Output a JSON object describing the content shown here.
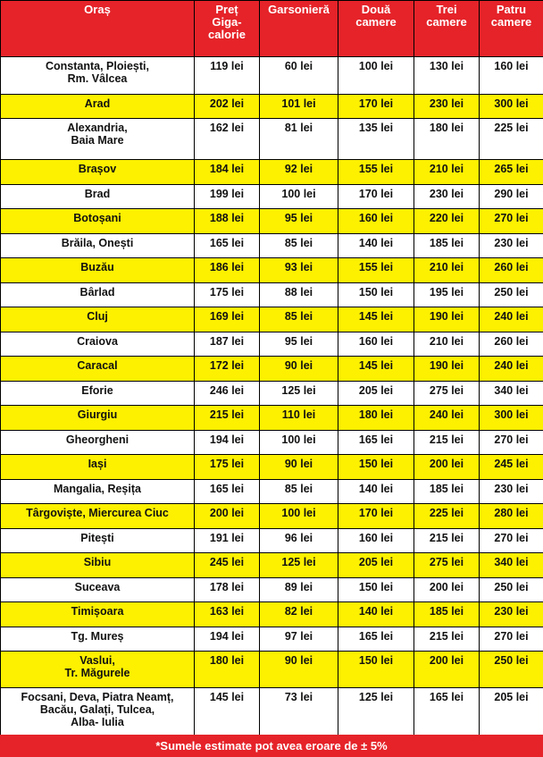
{
  "table": {
    "header": [
      "Oraș",
      "Preț\nGiga-\ncalorie",
      "Garsonieră",
      "Două\ncamere",
      "Trei\ncamere",
      "Patru\ncamere"
    ],
    "rows": [
      [
        "Constanta, Ploiești,\nRm. Vâlcea",
        "119 lei",
        "60 lei",
        "100 lei",
        "130 lei",
        "160 lei"
      ],
      [
        "Arad",
        "202 lei",
        "101 lei",
        "170 lei",
        "230 lei",
        "300 lei"
      ],
      [
        "Alexandria,\nBaia Mare",
        "162 lei",
        "81 lei",
        "135 lei",
        "180 lei",
        "225 lei"
      ],
      [
        "Brașov",
        "184 lei",
        "92 lei",
        "155 lei",
        "210 lei",
        "265 lei"
      ],
      [
        "Brad",
        "199 lei",
        "100 lei",
        "170 lei",
        "230 lei",
        "290 lei"
      ],
      [
        "Botoșani",
        "188 lei",
        "95 lei",
        "160 lei",
        "220 lei",
        "270 lei"
      ],
      [
        "Brăila, Onești",
        "165 lei",
        "85 lei",
        "140 lei",
        "185 lei",
        "230 lei"
      ],
      [
        "Buzău",
        "186 lei",
        "93 lei",
        "155 lei",
        "210 lei",
        "260 lei"
      ],
      [
        "Bârlad",
        "175 lei",
        "88 lei",
        "150 lei",
        "195 lei",
        "250 lei"
      ],
      [
        "Cluj",
        "169 lei",
        "85 lei",
        "145 lei",
        "190 lei",
        "240 lei"
      ],
      [
        "Craiova",
        "187 lei",
        "95 lei",
        "160 lei",
        "210 lei",
        "260 lei"
      ],
      [
        "Caracal",
        "172 lei",
        "90 lei",
        "145 lei",
        "190 lei",
        "240 lei"
      ],
      [
        "Eforie",
        "246 lei",
        "125 lei",
        "205 lei",
        "275 lei",
        "340 lei"
      ],
      [
        "Giurgiu",
        "215 lei",
        "110 lei",
        "180 lei",
        "240 lei",
        "300 lei"
      ],
      [
        "Gheorgheni",
        "194 lei",
        "100 lei",
        "165 lei",
        "215 lei",
        "270 lei"
      ],
      [
        "Iași",
        "175 lei",
        "90 lei",
        "150 lei",
        "200 lei",
        "245 lei"
      ],
      [
        "Mangalia, Reșița",
        "165 lei",
        "85 lei",
        "140 lei",
        "185 lei",
        "230 lei"
      ],
      [
        "Târgoviște, Miercurea Ciuc",
        "200 lei",
        "100 lei",
        "170 lei",
        "225 lei",
        "280 lei"
      ],
      [
        "Pitești",
        "191 lei",
        "96 lei",
        "160 lei",
        "215 lei",
        "270 lei"
      ],
      [
        "Sibiu",
        "245 lei",
        "125 lei",
        "205 lei",
        "275 lei",
        "340 lei"
      ],
      [
        "Suceava",
        "178 lei",
        "89 lei",
        "150 lei",
        "200 lei",
        "250 lei"
      ],
      [
        "Timișoara",
        "163 lei",
        "82 lei",
        "140 lei",
        "185 lei",
        "230 lei"
      ],
      [
        "Tg. Mureș",
        "194 lei",
        "97 lei",
        "165 lei",
        "215 lei",
        "270 lei"
      ],
      [
        "Vaslui,\nTr. Măgurele",
        "180 lei",
        "90 lei",
        "150 lei",
        "200 lei",
        "250 lei"
      ],
      [
        "Focsani, Deva, Piatra Neamț,\nBacău, Galați, Tulcea,\nAlba- Iulia",
        "145 lei",
        "73 lei",
        "125 lei",
        "165 lei",
        "205 lei"
      ]
    ],
    "footnote": "*Sumele estimate pot avea eroare de ± 5%"
  }
}
